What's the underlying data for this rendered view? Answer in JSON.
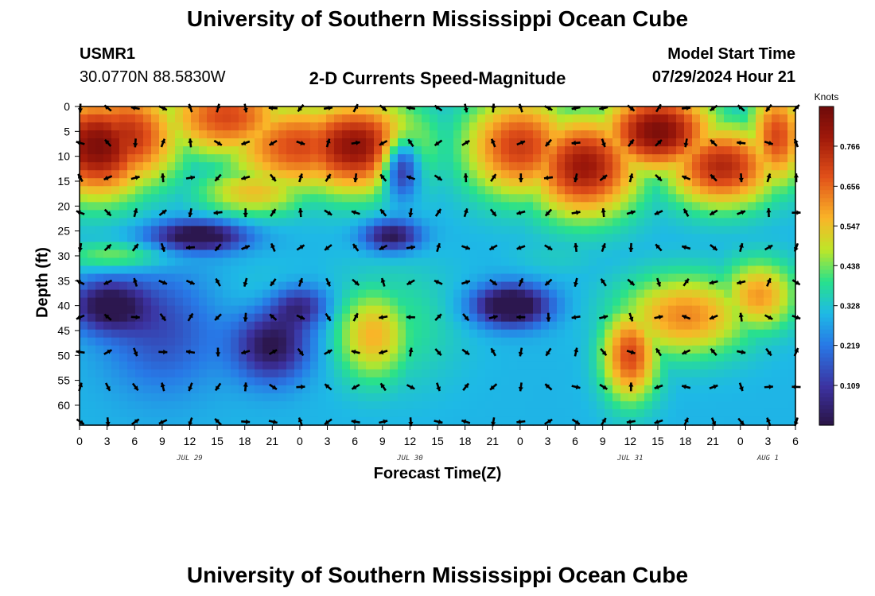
{
  "header": {
    "title": "University of Southern Mississippi Ocean Cube",
    "station_id": "USMR1",
    "coordinates": "30.0770N  88.5830W",
    "plot_title": "2-D Currents Speed-Magnitude",
    "model_start_label": "Model Start Time",
    "model_start_value": "07/29/2024 Hour 21"
  },
  "footer": {
    "title": "University of Southern Mississippi Ocean Cube"
  },
  "chart_data": {
    "type": "heatmap",
    "title": "2-D Currents Speed-Magnitude",
    "xlabel": "Forecast Time(Z)",
    "ylabel": "Depth (ft)",
    "x_ticks": [
      "0",
      "3",
      "6",
      "9",
      "12",
      "15",
      "18",
      "21",
      "0",
      "3",
      "6",
      "9",
      "12",
      "15",
      "18",
      "21",
      "0",
      "3",
      "6",
      "9",
      "12",
      "15",
      "18",
      "21",
      "0",
      "3",
      "6"
    ],
    "x_hours": [
      0,
      78
    ],
    "day_labels": [
      {
        "label": "JUL 29",
        "hour": 12
      },
      {
        "label": "JUL 30",
        "hour": 36
      },
      {
        "label": "JUL 31",
        "hour": 60
      },
      {
        "label": "AUG 1",
        "hour": 75
      }
    ],
    "y_ticks": [
      0,
      5,
      10,
      15,
      20,
      25,
      30,
      35,
      40,
      45,
      50,
      55,
      60
    ],
    "ylim": [
      0,
      64
    ],
    "colorbar": {
      "units": "Knots",
      "ticks": [
        0.109,
        0.219,
        0.328,
        0.438,
        0.547,
        0.656,
        0.766
      ],
      "range": [
        0.0,
        0.875
      ]
    },
    "speed_blobs": [
      {
        "t": 2,
        "d": 8,
        "v": 0.85,
        "st": 6,
        "sd": 10
      },
      {
        "t": 5,
        "d": 6,
        "v": 0.75,
        "st": 6,
        "sd": 10
      },
      {
        "t": 16,
        "d": 2,
        "v": 0.7,
        "st": 7,
        "sd": 8
      },
      {
        "t": 24,
        "d": 8,
        "v": 0.7,
        "st": 8,
        "sd": 9
      },
      {
        "t": 30,
        "d": 8,
        "v": 0.82,
        "st": 7,
        "sd": 9
      },
      {
        "t": 19,
        "d": 17,
        "v": 0.55,
        "st": 6,
        "sd": 5
      },
      {
        "t": 48,
        "d": 8,
        "v": 0.72,
        "st": 6,
        "sd": 10
      },
      {
        "t": 55,
        "d": 12,
        "v": 0.8,
        "st": 6,
        "sd": 10
      },
      {
        "t": 63,
        "d": 5,
        "v": 0.85,
        "st": 6,
        "sd": 8
      },
      {
        "t": 70,
        "d": 12,
        "v": 0.76,
        "st": 6,
        "sd": 8
      },
      {
        "t": 76,
        "d": 6,
        "v": 0.7,
        "st": 3,
        "sd": 10
      },
      {
        "t": 32,
        "d": 46,
        "v": 0.57,
        "st": 4,
        "sd": 9
      },
      {
        "t": 34,
        "d": 44,
        "v": 0.4,
        "st": 7,
        "sd": 12
      },
      {
        "t": 60,
        "d": 50,
        "v": 0.7,
        "st": 3,
        "sd": 9
      },
      {
        "t": 66,
        "d": 42,
        "v": 0.62,
        "st": 7,
        "sd": 8
      },
      {
        "t": 74,
        "d": 38,
        "v": 0.6,
        "st": 4,
        "sd": 7
      },
      {
        "t": 11,
        "d": 8,
        "v": 0.4,
        "st": 2,
        "sd": 10
      },
      {
        "t": 4,
        "d": 30,
        "v": 0.45,
        "st": 6,
        "sd": 3
      },
      {
        "t": 21,
        "d": 38,
        "v": 0.34,
        "st": 6,
        "sd": 6
      },
      {
        "t": 52,
        "d": 30,
        "v": 0.34,
        "st": 5,
        "sd": 4
      }
    ],
    "slow_blobs": [
      {
        "t": 13,
        "d": 26,
        "v": 0.35,
        "st": 5,
        "sd": 3
      },
      {
        "t": 3,
        "d": 40,
        "v": 0.3,
        "st": 4,
        "sd": 5
      },
      {
        "t": 21,
        "d": 48,
        "v": 0.3,
        "st": 4,
        "sd": 7
      },
      {
        "t": 24,
        "d": 40,
        "v": 0.22,
        "st": 3,
        "sd": 4
      },
      {
        "t": 35,
        "d": 12,
        "v": 0.4,
        "st": 2,
        "sd": 6
      },
      {
        "t": 34,
        "d": 26,
        "v": 0.3,
        "st": 3,
        "sd": 3
      },
      {
        "t": 47,
        "d": 40,
        "v": 0.4,
        "st": 4,
        "sd": 4
      },
      {
        "t": 9,
        "d": 45,
        "v": 0.15,
        "st": 6,
        "sd": 12
      }
    ]
  }
}
